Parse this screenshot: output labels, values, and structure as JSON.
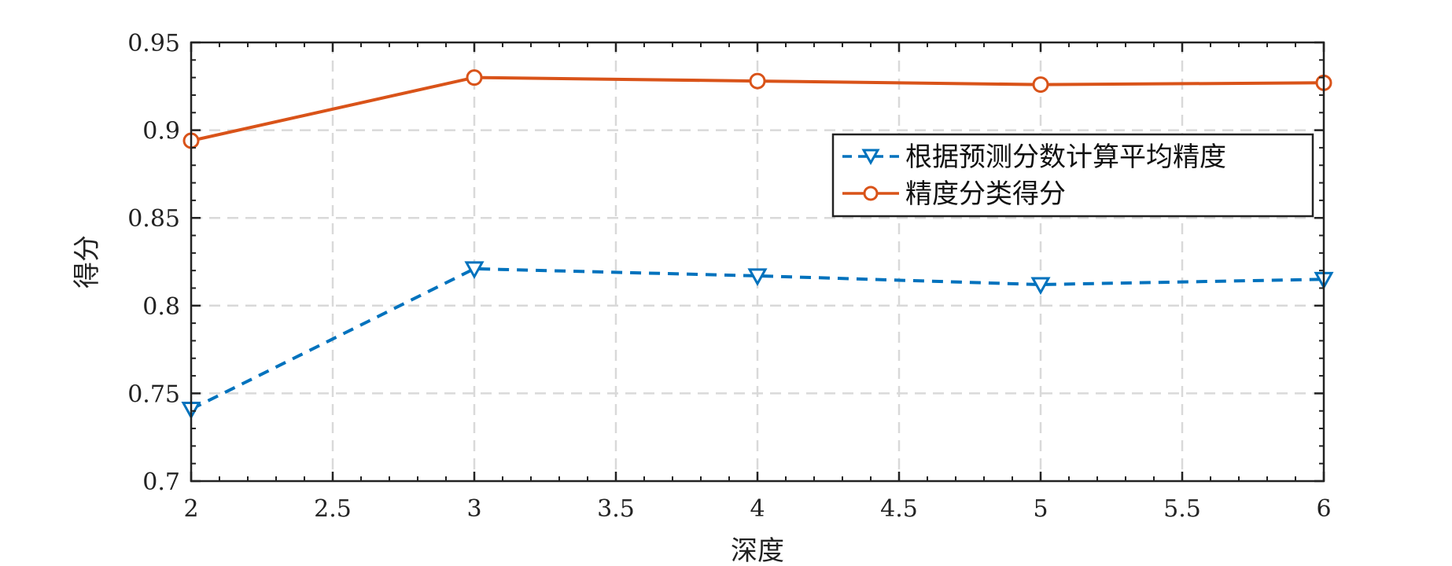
{
  "chart_data": {
    "type": "line",
    "xlabel": "深度",
    "ylabel": "得分",
    "xlim": [
      2,
      6
    ],
    "ylim": [
      0.7,
      0.95
    ],
    "x_ticks": [
      2,
      2.5,
      3,
      3.5,
      4,
      4.5,
      5,
      5.5,
      6
    ],
    "x_tick_labels": [
      "2",
      "2.5",
      "3",
      "3.5",
      "4",
      "4.5",
      "5",
      "5.5",
      "6"
    ],
    "y_ticks": [
      0.7,
      0.75,
      0.8,
      0.85,
      0.9,
      0.95
    ],
    "y_tick_labels": [
      "0.7",
      "0.75",
      "0.8",
      "0.85",
      "0.9",
      "0.95"
    ],
    "grid": true,
    "legend_position": "top-right",
    "x": [
      2,
      3,
      4,
      5,
      6
    ],
    "series": [
      {
        "name": "根据预测分数计算平均精度",
        "values": [
          0.741,
          0.821,
          0.817,
          0.812,
          0.815
        ],
        "color": "#0072BD",
        "line_style": "dashed",
        "marker": "triangle-down"
      },
      {
        "name": "精度分类得分",
        "values": [
          0.894,
          0.93,
          0.928,
          0.926,
          0.927
        ],
        "color": "#D95319",
        "line_style": "solid",
        "marker": "circle"
      }
    ]
  }
}
